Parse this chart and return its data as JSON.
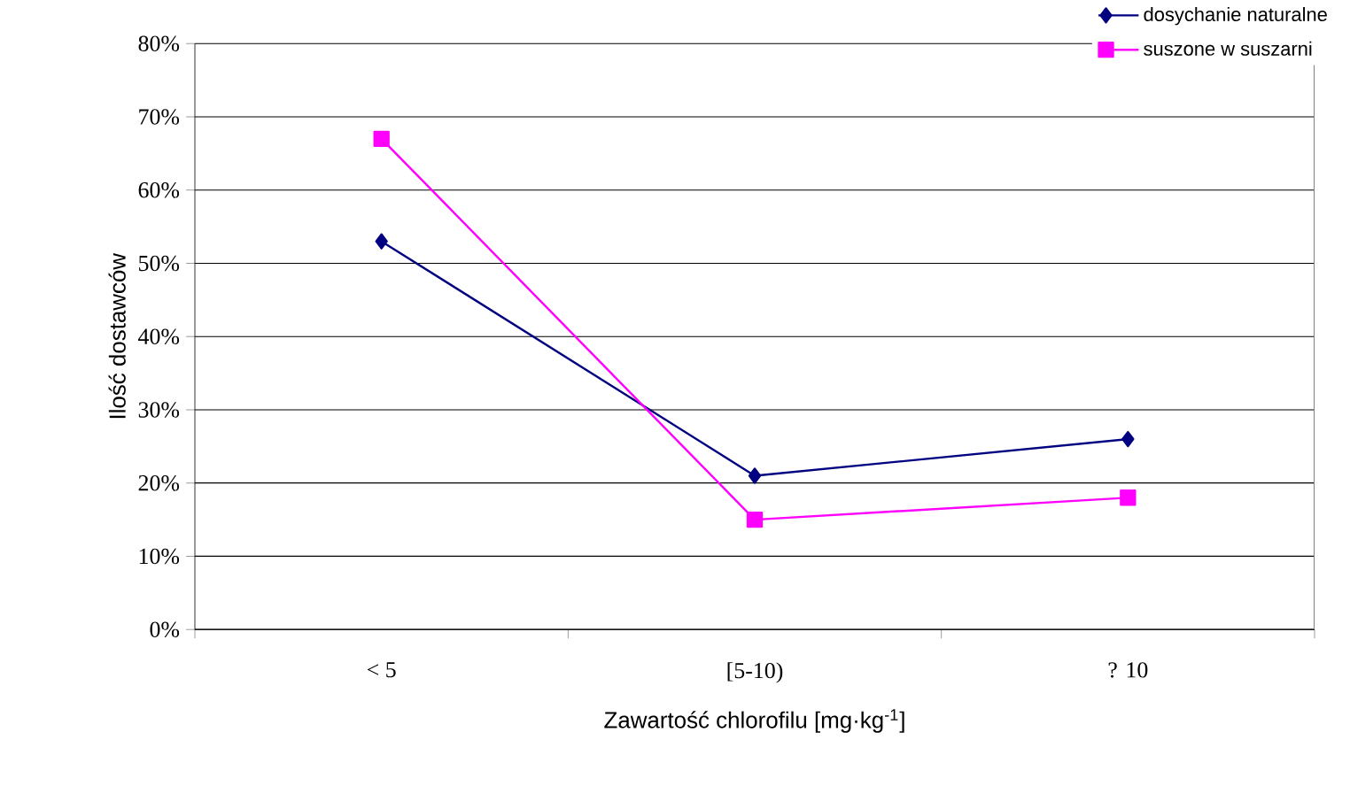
{
  "chart_data": {
    "type": "line",
    "xlabel": "Zawartość chlorofilu [mg·kg$^{-1}$]",
    "ylabel": "Ilość dostawców",
    "categories": [
      "< 5",
      "[5-10)",
      "? 10"
    ],
    "series": [
      {
        "name": "dosychanie naturalne",
        "color": "#000080",
        "marker": "diamond",
        "values": [
          53,
          21,
          26
        ]
      },
      {
        "name": "suszone w suszarni",
        "color": "#ff00ff",
        "marker": "square",
        "values": [
          67,
          15,
          18
        ]
      }
    ],
    "ylim": [
      0,
      80
    ],
    "yticks": [
      {
        "value": 0,
        "label": "0%"
      },
      {
        "value": 10,
        "label": "10%"
      },
      {
        "value": 20,
        "label": "20%"
      },
      {
        "value": 30,
        "label": "30%"
      },
      {
        "value": 40,
        "label": "40%"
      },
      {
        "value": 50,
        "label": "50%"
      },
      {
        "value": 60,
        "label": "60%"
      },
      {
        "value": 70,
        "label": "70%"
      },
      {
        "value": 80,
        "label": "80%"
      }
    ],
    "grid": "y",
    "legend": "top right"
  }
}
